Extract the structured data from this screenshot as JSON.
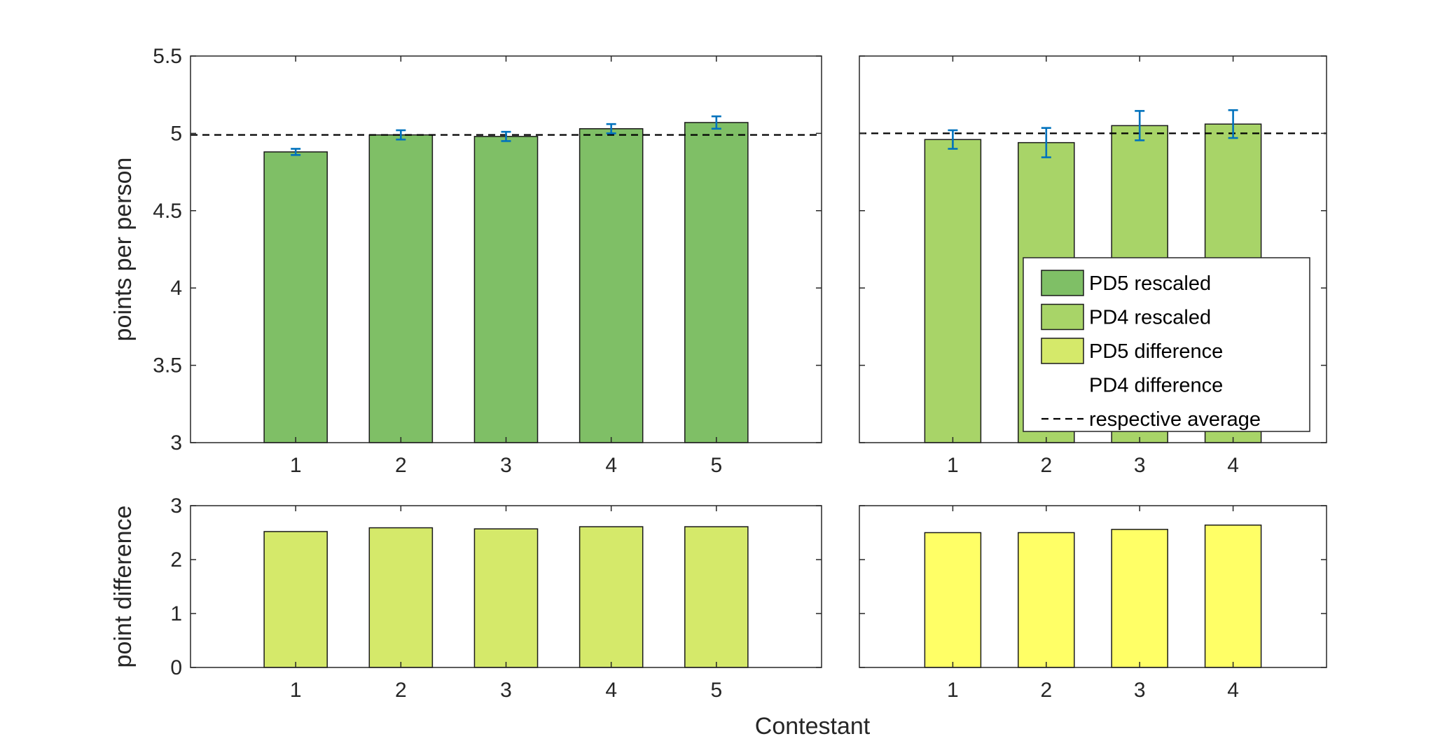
{
  "figure": {
    "shared_xlabel": "Contestant",
    "colors": {
      "pd5_rescaled": "#7fbf66",
      "pd4_rescaled": "#a8d468",
      "pd5_difference": "#d5e96a",
      "pd4_difference": "#ffff66",
      "error_bar": "#0072bd",
      "average_line": "#000000",
      "bar_edge": "#1a1a1a"
    }
  },
  "legend": {
    "placement": "inside-lower-right of top-right panel",
    "entries": [
      {
        "label": "PD5 rescaled",
        "swatch": "pd5_rescaled"
      },
      {
        "label": "PD4 rescaled",
        "swatch": "pd4_rescaled"
      },
      {
        "label": "PD5 difference",
        "swatch": "pd5_difference"
      },
      {
        "label": "PD4 difference",
        "swatch": "none"
      },
      {
        "label": "respective average",
        "swatch": "dashed-line"
      }
    ]
  },
  "chart_data": [
    {
      "id": "top-left",
      "type": "bar",
      "ylabel": "points per person",
      "ylim": [
        3,
        5.5
      ],
      "yticks": [
        3,
        3.5,
        4,
        4.5,
        5,
        5.5
      ],
      "ytick_labels": [
        "3",
        "3.5",
        "4",
        "4.5",
        "5",
        "5.5"
      ],
      "categories": [
        "1",
        "2",
        "3",
        "4",
        "5"
      ],
      "x": [
        1,
        2,
        3,
        4,
        5
      ],
      "xlim": [
        0,
        6
      ],
      "values": [
        4.88,
        4.99,
        4.98,
        5.03,
        5.07
      ],
      "error": [
        0.02,
        0.03,
        0.03,
        0.03,
        0.04
      ],
      "average": 4.99,
      "color": "pd5_rescaled",
      "grid": false
    },
    {
      "id": "top-right",
      "type": "bar",
      "ylabel": "",
      "ylim": [
        3,
        5.5
      ],
      "yticks": [
        3,
        3.5,
        4,
        4.5,
        5,
        5.5
      ],
      "ytick_labels": [],
      "categories": [
        "1",
        "2",
        "3",
        "4"
      ],
      "x": [
        1,
        2,
        3,
        4
      ],
      "xlim": [
        0,
        5
      ],
      "values": [
        4.96,
        4.94,
        5.05,
        5.06
      ],
      "error": [
        0.06,
        0.095,
        0.095,
        0.09
      ],
      "average": 5.0,
      "color": "pd4_rescaled",
      "grid": false
    },
    {
      "id": "bottom-left",
      "type": "bar",
      "ylabel": "point difference",
      "ylim": [
        0,
        3
      ],
      "yticks": [
        0,
        1,
        2,
        3
      ],
      "ytick_labels": [
        "0",
        "1",
        "2",
        "3"
      ],
      "categories": [
        "1",
        "2",
        "3",
        "4",
        "5"
      ],
      "x": [
        1,
        2,
        3,
        4,
        5
      ],
      "xlim": [
        0,
        6
      ],
      "values": [
        2.52,
        2.59,
        2.57,
        2.61,
        2.61
      ],
      "color": "pd5_difference",
      "grid": false
    },
    {
      "id": "bottom-right",
      "type": "bar",
      "ylabel": "",
      "ylim": [
        0,
        3
      ],
      "yticks": [
        0,
        1,
        2,
        3
      ],
      "ytick_labels": [],
      "categories": [
        "1",
        "2",
        "3",
        "4"
      ],
      "x": [
        1,
        2,
        3,
        4
      ],
      "xlim": [
        0,
        5
      ],
      "values": [
        2.5,
        2.5,
        2.56,
        2.64
      ],
      "color": "pd4_difference",
      "grid": false
    }
  ]
}
